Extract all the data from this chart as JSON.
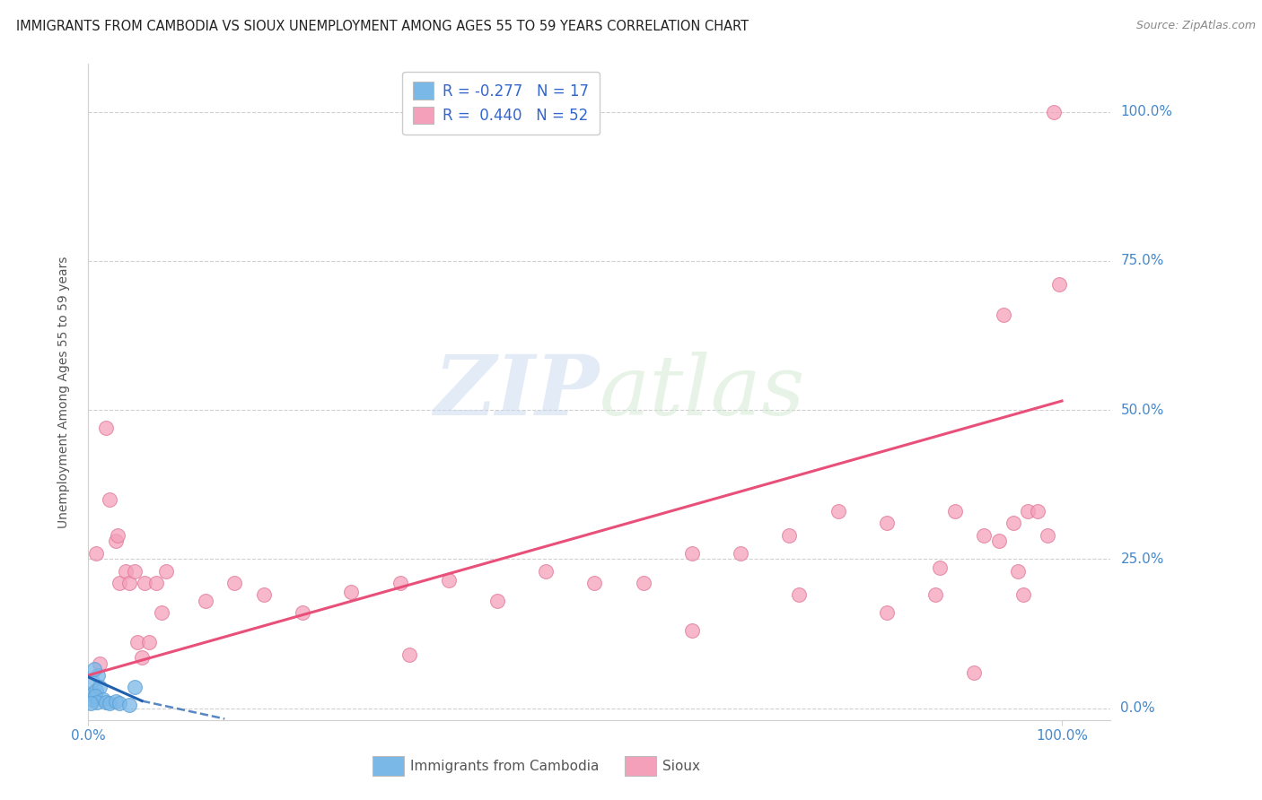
{
  "title": "IMMIGRANTS FROM CAMBODIA VS SIOUX UNEMPLOYMENT AMONG AGES 55 TO 59 YEARS CORRELATION CHART",
  "source": "Source: ZipAtlas.com",
  "ylabel": "Unemployment Among Ages 55 to 59 years",
  "ytick_labels": [
    "0.0%",
    "25.0%",
    "50.0%",
    "75.0%",
    "100.0%"
  ],
  "ytick_values": [
    0,
    25,
    50,
    75,
    100
  ],
  "xtick_labels": [
    "0.0%",
    "100.0%"
  ],
  "xtick_values": [
    0,
    100
  ],
  "xlim": [
    0,
    105
  ],
  "ylim": [
    -2,
    108
  ],
  "watermark_zip": "ZIP",
  "watermark_atlas": "atlas",
  "legend_entries": [
    {
      "r_label": "R = -0.277",
      "n_label": "N = 17",
      "color": "#a8c8f0"
    },
    {
      "r_label": "R =  0.440",
      "n_label": "N = 52",
      "color": "#f5b8cb"
    }
  ],
  "cambodia_points": [
    [
      0.3,
      1.5
    ],
    [
      0.5,
      2.5
    ],
    [
      0.4,
      4.5
    ],
    [
      0.8,
      3.0
    ],
    [
      1.0,
      5.5
    ],
    [
      0.6,
      6.5
    ],
    [
      1.2,
      3.5
    ],
    [
      0.7,
      2.0
    ],
    [
      1.5,
      1.5
    ],
    [
      0.9,
      1.0
    ],
    [
      1.8,
      1.0
    ],
    [
      2.2,
      0.8
    ],
    [
      2.8,
      1.2
    ],
    [
      3.2,
      0.8
    ],
    [
      4.2,
      0.5
    ],
    [
      4.8,
      3.5
    ],
    [
      0.2,
      0.8
    ]
  ],
  "sioux_points": [
    [
      0.8,
      26.0
    ],
    [
      1.2,
      7.5
    ],
    [
      1.8,
      47.0
    ],
    [
      2.2,
      35.0
    ],
    [
      2.8,
      28.0
    ],
    [
      3.2,
      21.0
    ],
    [
      3.0,
      29.0
    ],
    [
      3.8,
      23.0
    ],
    [
      4.2,
      21.0
    ],
    [
      4.8,
      23.0
    ],
    [
      5.0,
      11.0
    ],
    [
      5.5,
      8.5
    ],
    [
      5.8,
      21.0
    ],
    [
      6.2,
      11.0
    ],
    [
      7.0,
      21.0
    ],
    [
      7.5,
      16.0
    ],
    [
      8.0,
      23.0
    ],
    [
      12.0,
      18.0
    ],
    [
      15.0,
      21.0
    ],
    [
      18.0,
      19.0
    ],
    [
      22.0,
      16.0
    ],
    [
      27.0,
      19.5
    ],
    [
      32.0,
      21.0
    ],
    [
      37.0,
      21.5
    ],
    [
      42.0,
      18.0
    ],
    [
      47.0,
      23.0
    ],
    [
      52.0,
      21.0
    ],
    [
      57.0,
      21.0
    ],
    [
      62.0,
      26.0
    ],
    [
      67.0,
      26.0
    ],
    [
      72.0,
      29.0
    ],
    [
      77.0,
      33.0
    ],
    [
      82.0,
      31.0
    ],
    [
      87.0,
      19.0
    ],
    [
      87.5,
      23.5
    ],
    [
      89.0,
      33.0
    ],
    [
      91.0,
      6.0
    ],
    [
      92.0,
      29.0
    ],
    [
      93.5,
      28.0
    ],
    [
      94.0,
      66.0
    ],
    [
      95.0,
      31.0
    ],
    [
      95.5,
      23.0
    ],
    [
      96.0,
      19.0
    ],
    [
      96.5,
      33.0
    ],
    [
      97.5,
      33.0
    ],
    [
      98.5,
      29.0
    ],
    [
      99.2,
      100.0
    ],
    [
      99.7,
      71.0
    ],
    [
      33.0,
      9.0
    ],
    [
      62.0,
      13.0
    ],
    [
      73.0,
      19.0
    ],
    [
      82.0,
      16.0
    ]
  ],
  "cambodia_line_solid": {
    "x": [
      0.0,
      5.5
    ],
    "y": [
      5.2,
      1.2
    ]
  },
  "cambodia_line_dashed": {
    "x": [
      5.5,
      14.0
    ],
    "y": [
      1.2,
      -1.8
    ]
  },
  "sioux_line": {
    "x": [
      0.0,
      100.0
    ],
    "y": [
      5.5,
      51.5
    ]
  },
  "cambodia_color": "#7ab8e8",
  "cambodia_edge_color": "#5a9fd4",
  "sioux_color": "#f5a0bb",
  "sioux_edge_color": "#e07898",
  "cambodia_line_color": "#2060b0",
  "sioux_line_color": "#e8507a",
  "grid_color": "#d0d0d0",
  "right_tick_color": "#4488cc",
  "bottom_tick_color": "#4488cc",
  "background_color": "#ffffff",
  "title_fontsize": 10.5,
  "source_fontsize": 9,
  "ylabel_fontsize": 10,
  "tick_fontsize": 11,
  "legend_fontsize": 12
}
